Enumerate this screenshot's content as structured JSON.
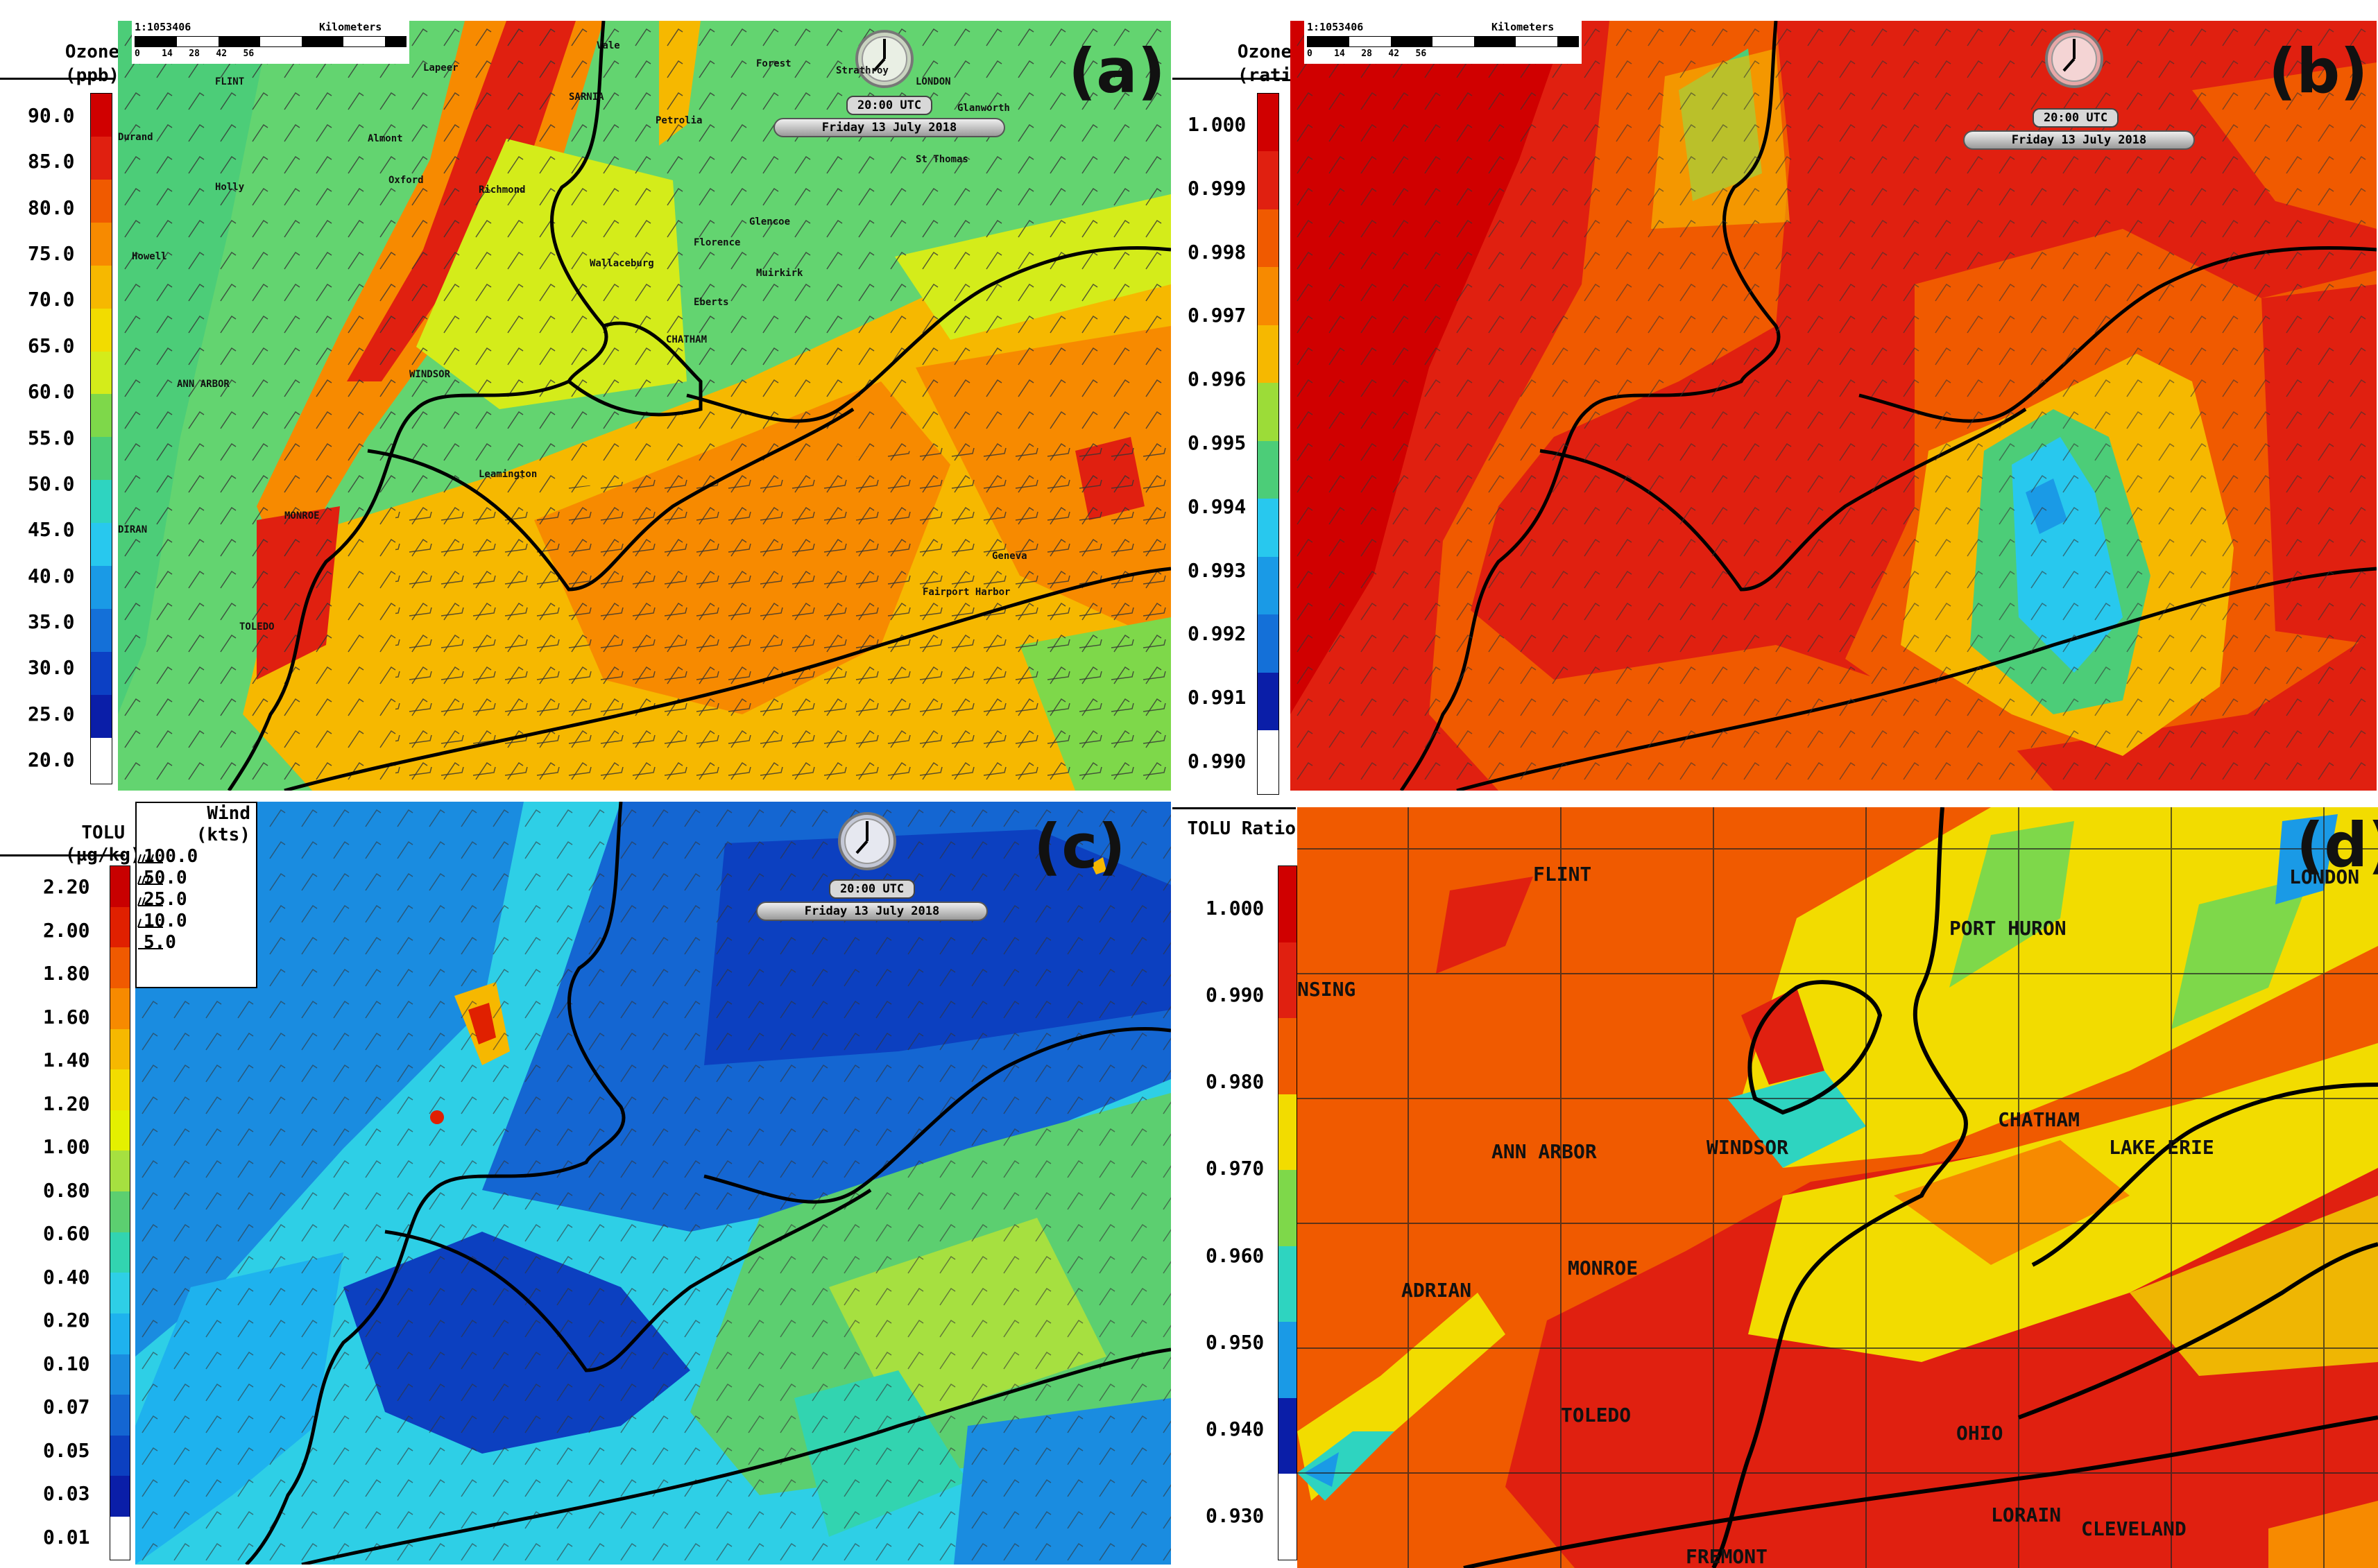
{
  "panels": {
    "a": {
      "label": "(a)",
      "legend_title_line1": "Ozone",
      "legend_title_line2": "(ppb)",
      "ticks": [
        "90.0",
        "85.0",
        "80.0",
        "75.0",
        "70.0",
        "65.0",
        "60.0",
        "55.0",
        "50.0",
        "45.0",
        "40.0",
        "35.0",
        "30.0",
        "25.0",
        "20.0"
      ],
      "time": "20:00 UTC",
      "date": "Friday 13 July 2018",
      "scale_ratio": "1:1053406",
      "scale_units": "Kilometers",
      "scale_ticks": "0    14   28   42   56",
      "cities": [
        "Vale",
        "Forest",
        "LONDON",
        "Strathroy",
        "FLINT",
        "Lapeer",
        "SARNIA",
        "Glanworth",
        "Durand",
        "Almont",
        "Petrolia",
        "St Thomas",
        "Oxford",
        "Holly",
        "Richmond",
        "Glencoe",
        "Florence",
        "Howell",
        "Wallaceburg",
        "Muirkirk",
        "Eberts",
        "CHATHAM",
        "WINDSOR",
        "ANN ARBOR",
        "Leamington",
        "MONROE",
        "DIRAN",
        "TOLEDO",
        "Fairport Harbor",
        "Geneva"
      ]
    },
    "b": {
      "label": "(b)",
      "legend_title_line1": "Ozone",
      "legend_title_line2": "(ratio)",
      "ticks": [
        "1.000",
        "0.999",
        "0.998",
        "0.997",
        "0.996",
        "0.995",
        "0.994",
        "0.993",
        "0.992",
        "0.991",
        "0.990"
      ],
      "time": "20:00 UTC",
      "date": "Friday 13 July 2018",
      "scale_ratio": "1:1053406",
      "scale_units": "Kilometers",
      "scale_ticks": "0    14   28   42   56"
    },
    "c": {
      "label": "(c)",
      "legend_title_line1": "TOLU",
      "legend_title_line2": "(µg/kg)",
      "ticks": [
        "2.20",
        "2.00",
        "1.80",
        "1.60",
        "1.40",
        "1.20",
        "1.00",
        "0.80",
        "0.60",
        "0.40",
        "0.20",
        "0.10",
        "0.07",
        "0.05",
        "0.03",
        "0.01"
      ],
      "time": "20:00 UTC",
      "date": "Friday 13 July 2018",
      "wind_legend": {
        "title_line1": "Wind",
        "title_line2": "(kts)",
        "rows": [
          "100.0",
          "50.0",
          "25.0",
          "10.0",
          "5.0"
        ]
      }
    },
    "d": {
      "label": "(d)",
      "legend_title": "TOLU Ratio",
      "ticks": [
        "1.000",
        "0.990",
        "0.980",
        "0.970",
        "0.960",
        "0.950",
        "0.940",
        "0.930"
      ],
      "cities": [
        "FLINT",
        "PORT HURON",
        "LONDON",
        "NSING",
        "CHATHAM",
        "WINDSOR",
        "ANN ARBOR",
        "LAKE ERIE",
        "ADRIAN",
        "MONROE",
        "TOLEDO",
        "OHIO",
        "LORAIN",
        "CLEVELAND",
        "FREMONT"
      ]
    }
  },
  "colors": {
    "ozone_scale": [
      "#d00000",
      "#e02010",
      "#f05a00",
      "#f78a00",
      "#f6b800",
      "#f2dc00",
      "#d4ec1a",
      "#7ed84a",
      "#4ccd78",
      "#2ed4c0",
      "#28c8ee",
      "#1a9ae6",
      "#1470d8",
      "#0c40c4",
      "#0a1ea8"
    ],
    "ratio_scale": [
      "#d00000",
      "#e02010",
      "#f05a00",
      "#f78a00",
      "#f6b800",
      "#9cdc38",
      "#4ccd78",
      "#28c8ee",
      "#1a9ae6",
      "#1470d8",
      "#0a1ea8"
    ],
    "tolu_scale": [
      "#c80000",
      "#e02000",
      "#f05a00",
      "#f78a00",
      "#f6b800",
      "#f2dc00",
      "#e4f000",
      "#a6e040",
      "#5ccf70",
      "#32d4b0",
      "#2ecfe6",
      "#1eb2ee",
      "#1a8ce0",
      "#1466d2",
      "#0c40c0",
      "#0a1ea8"
    ],
    "tolu_ratio_scale": [
      "#d00000",
      "#e02010",
      "#f05a00",
      "#f2dc00",
      "#7ed84a",
      "#2ed4c0",
      "#1a9ae6",
      "#0a1ea8"
    ]
  }
}
